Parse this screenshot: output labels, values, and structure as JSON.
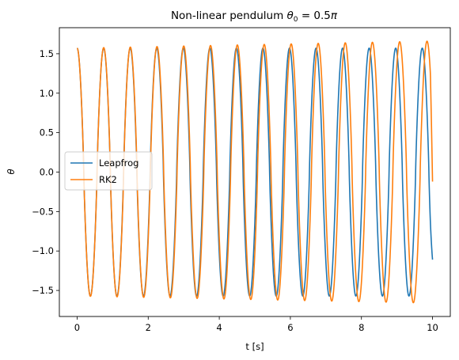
{
  "chart_data": {
    "type": "line",
    "title": "Non-linear pendulum θ₀ = 0.5π",
    "xlabel": "t [s]",
    "ylabel": "θ",
    "xlim": [
      -0.5,
      10.5
    ],
    "ylim": [
      -1.83,
      1.83
    ],
    "xticks": [
      0,
      2,
      4,
      6,
      8,
      10
    ],
    "yticks": [
      -1.5,
      -1.0,
      -0.5,
      0.0,
      0.5,
      1.0,
      1.5
    ],
    "xtick_labels": [
      "0",
      "2",
      "4",
      "6",
      "8",
      "10"
    ],
    "ytick_labels": [
      "−1.5",
      "−1.0",
      "−0.5",
      "0.0",
      "0.5",
      "1.0",
      "1.5"
    ],
    "grid": false,
    "legend_position": "center-left",
    "series": [
      {
        "name": "Leapfrog",
        "color": "#1f77b4",
        "amplitude": 1.5708,
        "period": 0.747,
        "end_value": -1.11,
        "peaks_t": [
          0,
          0.747,
          1.494,
          2.241,
          2.988,
          3.735,
          4.482,
          5.229,
          5.976,
          6.723,
          7.47,
          8.217,
          8.964,
          9.711
        ],
        "t_range": [
          0,
          10
        ]
      },
      {
        "name": "RK2",
        "color": "#ff7f0e",
        "amplitude_start": 1.5708,
        "amplitude_end": 1.66,
        "period_start": 0.747,
        "period_end": 0.77,
        "end_value": -0.12,
        "peaks_t": [
          0,
          0.748,
          1.497,
          2.248,
          3.0,
          3.753,
          4.508,
          5.265,
          6.023,
          6.783,
          7.545,
          8.309,
          9.076,
          9.845
        ],
        "t_range": [
          0,
          10
        ]
      }
    ]
  }
}
